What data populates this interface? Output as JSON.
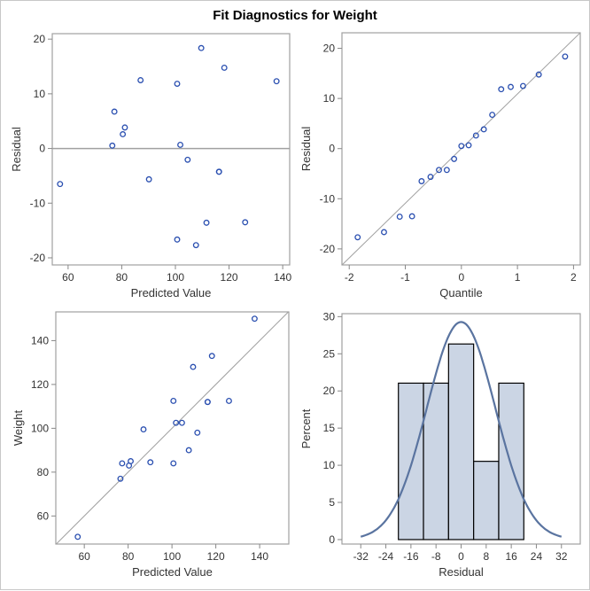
{
  "title": "Fit Diagnostics for Weight",
  "colors": {
    "marker": "#2a4fb0",
    "frame": "#a0a0a0",
    "refline": "#a0a0a0",
    "bar_fill": "#cbd5e4",
    "bar_edge": "#000000",
    "curve": "#5a74a0"
  },
  "chart_data": [
    {
      "type": "scatter",
      "xlabel": "Predicted Value",
      "ylabel": "Residual",
      "xlim": [
        54.1,
        142.6
      ],
      "ylim": [
        -21.3,
        21.0
      ],
      "xticks": [
        60,
        80,
        100,
        120,
        140
      ],
      "yticks": [
        -20,
        -10,
        0,
        10,
        20
      ],
      "reference_line": "horizontal at 0",
      "x": [
        126.0,
        77.26,
        111.58,
        101.83,
        104.56,
        80.39,
        90.14,
        100.66,
        100.66,
        87.01,
        57.0,
        107.68,
        76.48,
        116.26,
        137.7,
        109.63,
        118.23,
        81.16,
        116.26
      ],
      "y": [
        -13.5,
        6.74,
        -13.58,
        0.67,
        -2.06,
        2.61,
        -5.64,
        11.84,
        -16.66,
        12.49,
        -6.5,
        -17.68,
        0.52,
        -4.26,
        12.3,
        18.37,
        14.77,
        3.84,
        -4.26
      ]
    },
    {
      "type": "scatter",
      "xlabel": "Quantile",
      "ylabel": "Residual",
      "xlim": [
        -2.13,
        2.12
      ],
      "ylim": [
        -23.2,
        23.1
      ],
      "xticks": [
        -2,
        -1,
        0,
        1,
        2
      ],
      "yticks": [
        -20,
        -10,
        0,
        10,
        20
      ],
      "reference_line": "slope 10.9 through origin",
      "reference_slope": 10.9,
      "x": [
        -1.85,
        -1.38,
        -1.1,
        -0.88,
        -0.71,
        -0.55,
        -0.4,
        -0.26,
        -0.13,
        0.0,
        0.13,
        0.26,
        0.4,
        0.55,
        0.71,
        0.88,
        1.1,
        1.38,
        1.85
      ],
      "y": [
        -17.68,
        -16.66,
        -13.58,
        -13.5,
        -6.5,
        -5.64,
        -4.26,
        -4.26,
        -2.06,
        0.52,
        0.67,
        2.61,
        3.84,
        6.74,
        11.84,
        12.3,
        12.49,
        14.77,
        18.37
      ]
    },
    {
      "type": "scatter",
      "xlabel": "Predicted Value",
      "ylabel": "Weight",
      "xlim": [
        47.0,
        153.3
      ],
      "ylim": [
        47.2,
        153.1
      ],
      "xticks": [
        60,
        80,
        100,
        120,
        140
      ],
      "yticks": [
        60,
        80,
        100,
        120,
        140
      ],
      "reference_line": "identity y = x",
      "x": [
        126.0,
        77.26,
        111.58,
        101.83,
        104.56,
        80.39,
        90.14,
        100.66,
        100.66,
        87.01,
        57.0,
        107.68,
        76.48,
        116.26,
        137.7,
        109.63,
        118.23,
        81.16,
        116.26
      ],
      "y": [
        112.5,
        84,
        98,
        102.5,
        102.5,
        83,
        84.5,
        112.5,
        84,
        99.5,
        50.5,
        90,
        77,
        112,
        150,
        128,
        133,
        85,
        112
      ]
    },
    {
      "type": "bar",
      "xlabel": "Residual",
      "ylabel": "Percent",
      "xlim": [
        -38,
        38
      ],
      "ylim": [
        -0.6,
        30.4
      ],
      "xticks": [
        -32,
        -24,
        -16,
        -8,
        0,
        8,
        16,
        24,
        32
      ],
      "yticks": [
        0,
        5,
        10,
        15,
        20,
        25,
        30
      ],
      "bin_edges": [
        -20,
        -12,
        -4,
        4,
        12,
        20
      ],
      "values": [
        21.05,
        21.05,
        26.32,
        10.53,
        21.05
      ],
      "normal_curve": {
        "mean": 0,
        "sd": 10.9,
        "range": [
          -32,
          32
        ]
      }
    }
  ]
}
